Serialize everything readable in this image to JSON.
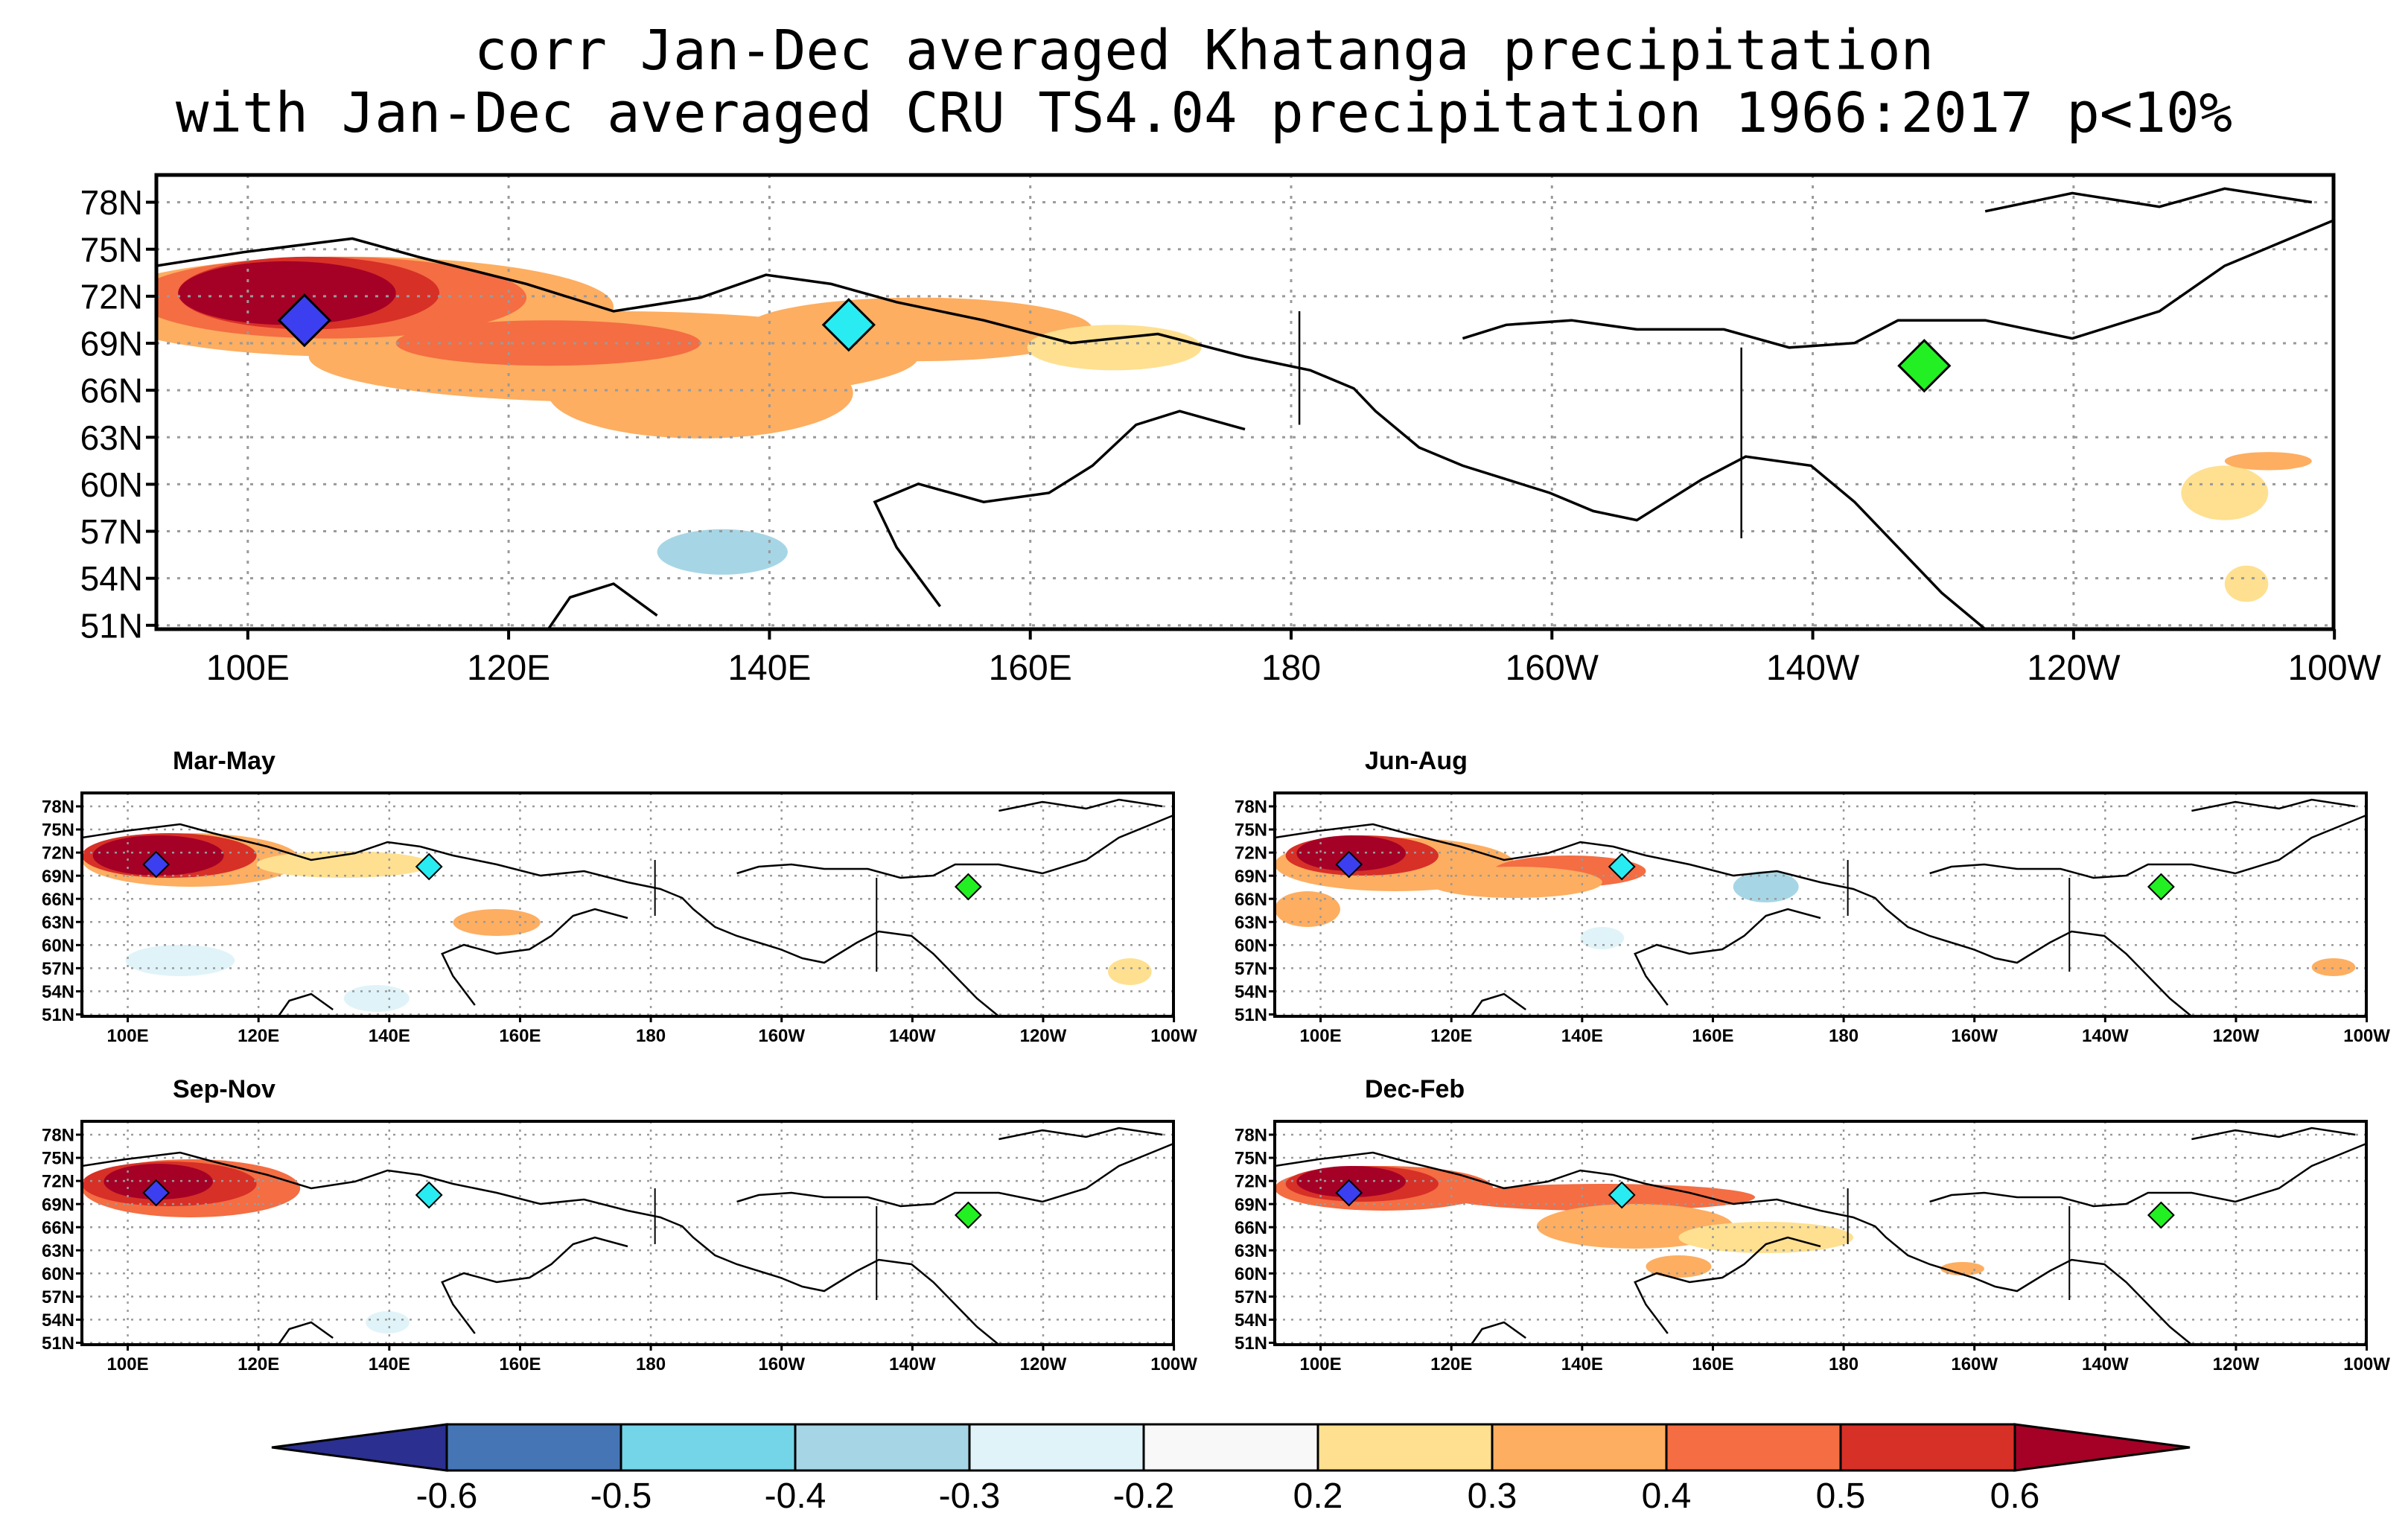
{
  "title": {
    "line1": "corr Jan-Dec averaged Khatanga precipitation",
    "line2": "with Jan-Dec averaged CRU TS4.04 precipitation 1966:2017 p<10%"
  },
  "lat_labels": [
    "78N",
    "75N",
    "72N",
    "69N",
    "66N",
    "63N",
    "60N",
    "57N",
    "54N",
    "51N"
  ],
  "lon_labels": [
    "100E",
    "120E",
    "140E",
    "160E",
    "180",
    "160W",
    "140W",
    "120W",
    "100W"
  ],
  "colors": {
    "n06": "#2b2f8f",
    "n05": "#4575b4",
    "n04": "#74d5e8",
    "n03": "#a6d6e6",
    "n02": "#e0f3f8",
    "p02": "#fee090",
    "p03": "#fdae61",
    "p04": "#f46d43",
    "p05": "#d73027",
    "p06": "#a50026",
    "station_khatanga": "#3b3ff0",
    "station_mid": "#28ecf2",
    "station_east": "#22f022"
  },
  "panels": [
    {
      "id": "annual",
      "label": ""
    },
    {
      "id": "mam",
      "label": "Mar-May"
    },
    {
      "id": "jja",
      "label": "Jun-Aug"
    },
    {
      "id": "son",
      "label": "Sep-Nov"
    },
    {
      "id": "djf",
      "label": "Dec-Feb"
    }
  ],
  "colorbar": {
    "levels": [
      "-0.6",
      "-0.5",
      "-0.4",
      "-0.3",
      "-0.2",
      "0.2",
      "0.3",
      "0.4",
      "0.5",
      "0.6"
    ]
  }
}
